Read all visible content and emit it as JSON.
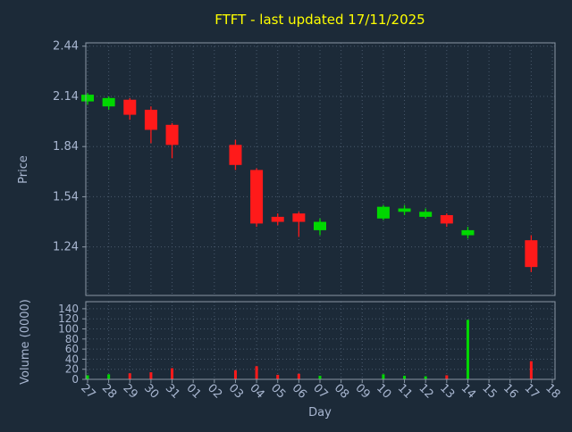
{
  "colors": {
    "background": "#1c2a38",
    "title": "#ffff00",
    "axis_text": "#a8b6d0",
    "grid": "#49596c",
    "spine": "#8a97a5",
    "up": "#00d800",
    "down": "#ff1a1a"
  },
  "chart_data": {
    "type": "candlestick",
    "title": "FTFT - last updated 17/11/2025",
    "xlabel": "Day",
    "grid": true,
    "panels": [
      {
        "ylabel": "Price",
        "yticks": [
          2.44,
          2.14,
          1.84,
          1.54,
          1.24
        ],
        "ylim": [
          0.95,
          2.46
        ]
      },
      {
        "ylabel": "Volume (0000)",
        "yticks": [
          140,
          120,
          100,
          80,
          60,
          40,
          20,
          0
        ],
        "ylim": [
          0,
          154
        ]
      }
    ],
    "days": [
      "27",
      "28",
      "29",
      "30",
      "31",
      "01",
      "02",
      "03",
      "04",
      "05",
      "06",
      "07",
      "08",
      "09",
      "10",
      "11",
      "12",
      "13",
      "14",
      "15",
      "16",
      "17",
      "18"
    ],
    "candles": [
      {
        "day": "27",
        "open": 2.11,
        "high": 2.16,
        "low": 2.09,
        "close": 2.15,
        "volume": 8
      },
      {
        "day": "28",
        "open": 2.08,
        "high": 2.14,
        "low": 2.06,
        "close": 2.13,
        "volume": 10
      },
      {
        "day": "29",
        "open": 2.12,
        "high": 2.13,
        "low": 2.0,
        "close": 2.03,
        "volume": 12
      },
      {
        "day": "30",
        "open": 2.06,
        "high": 2.08,
        "low": 1.86,
        "close": 1.94,
        "volume": 14
      },
      {
        "day": "31",
        "open": 1.97,
        "high": 1.98,
        "low": 1.77,
        "close": 1.85,
        "volume": 22
      },
      null,
      null,
      {
        "day": "03",
        "open": 1.85,
        "high": 1.88,
        "low": 1.7,
        "close": 1.73,
        "volume": 18
      },
      {
        "day": "04",
        "open": 1.7,
        "high": 1.71,
        "low": 1.36,
        "close": 1.38,
        "volume": 26
      },
      {
        "day": "05",
        "open": 1.42,
        "high": 1.44,
        "low": 1.37,
        "close": 1.39,
        "volume": 9
      },
      {
        "day": "06",
        "open": 1.44,
        "high": 1.45,
        "low": 1.3,
        "close": 1.39,
        "volume": 11
      },
      {
        "day": "07",
        "open": 1.34,
        "high": 1.41,
        "low": 1.31,
        "close": 1.39,
        "volume": 7
      },
      null,
      null,
      {
        "day": "10",
        "open": 1.41,
        "high": 1.49,
        "low": 1.4,
        "close": 1.48,
        "volume": 10
      },
      {
        "day": "11",
        "open": 1.45,
        "high": 1.49,
        "low": 1.43,
        "close": 1.47,
        "volume": 7
      },
      {
        "day": "12",
        "open": 1.42,
        "high": 1.47,
        "low": 1.41,
        "close": 1.45,
        "volume": 6
      },
      {
        "day": "13",
        "open": 1.43,
        "high": 1.44,
        "low": 1.36,
        "close": 1.38,
        "volume": 8
      },
      {
        "day": "14",
        "open": 1.31,
        "high": 1.36,
        "low": 1.29,
        "close": 1.34,
        "volume": 118
      },
      null,
      null,
      {
        "day": "17",
        "open": 1.28,
        "high": 1.31,
        "low": 1.09,
        "close": 1.12,
        "volume": 36
      },
      null
    ]
  }
}
